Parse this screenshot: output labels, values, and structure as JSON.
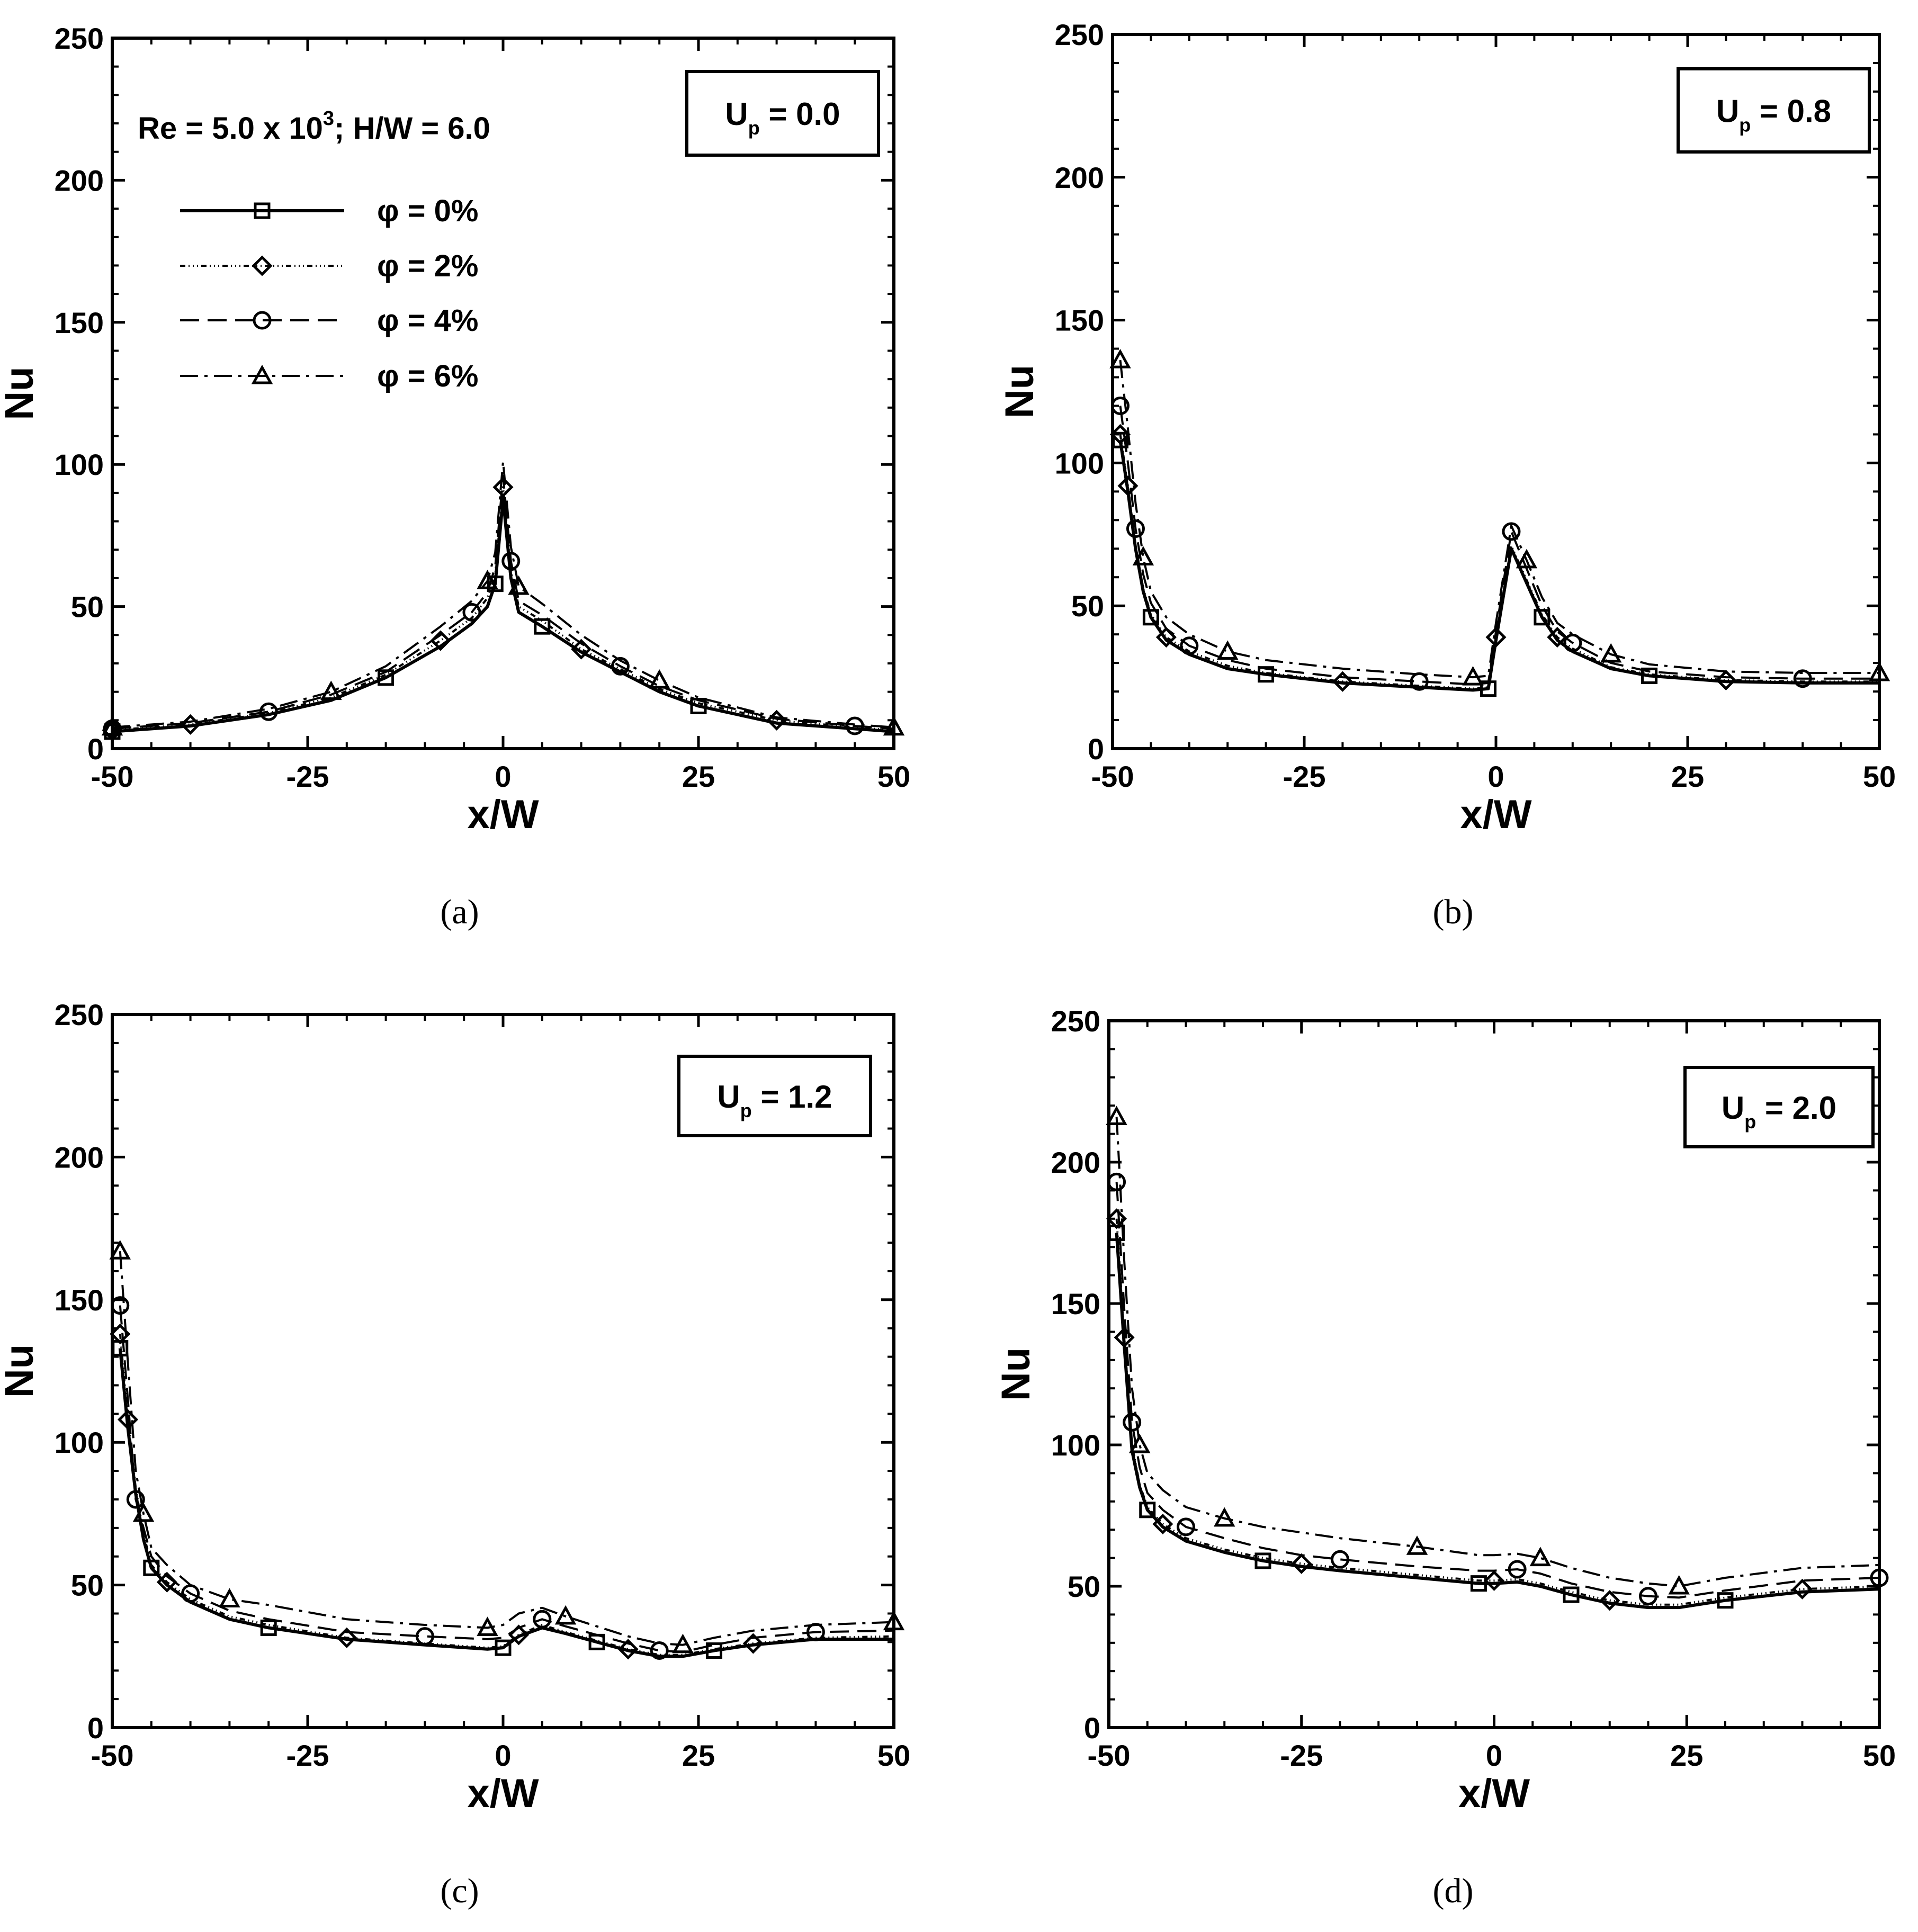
{
  "figure": {
    "annotation_main": "Re = 5.0 x 10",
    "annotation_sup": "3",
    "annotation_rest": "; H/W = 6.0",
    "legend_series_names": [
      "φ = 0%",
      "φ = 2%",
      "φ = 4%",
      "φ = 6%"
    ],
    "panel_captions": [
      "(a)",
      "(b)",
      "(c)",
      "(d)"
    ]
  },
  "chart_data": [
    {
      "type": "line",
      "panel": "(a)",
      "box_label": "U",
      "box_label_sub": "p",
      "box_label_value": " = 0.0",
      "xlabel": "x/W",
      "ylabel": "Nu",
      "xlim": [
        -50,
        50
      ],
      "ylim": [
        0,
        250
      ],
      "xticks": [
        "-50",
        "-25",
        "0",
        "25",
        "50"
      ],
      "yticks": [
        "0",
        "50",
        "100",
        "150",
        "200",
        "250"
      ],
      "x": [
        -50,
        -40,
        -30,
        -22,
        -15,
        -8,
        -4,
        -2,
        -1,
        0,
        1,
        2,
        5,
        10,
        15,
        20,
        25,
        35,
        45,
        50
      ],
      "series": [
        {
          "name": "φ = 0%",
          "marker": "square",
          "values": [
            6,
            8,
            12,
            17,
            25,
            36,
            44,
            50,
            58,
            88,
            60,
            48,
            43,
            34,
            27,
            20,
            15,
            9,
            7,
            6
          ]
        },
        {
          "name": "φ = 2%",
          "marker": "diamond",
          "values": [
            6.5,
            8.5,
            12.5,
            18,
            26,
            38,
            46,
            53,
            61,
            92,
            63,
            50,
            45,
            35,
            28,
            21,
            16,
            10,
            7.5,
            6.5
          ]
        },
        {
          "name": "φ = 4%",
          "marker": "circle",
          "values": [
            7,
            9,
            13,
            19,
            27,
            40,
            48,
            55,
            64,
            96,
            66,
            52,
            47,
            37,
            29,
            22,
            17,
            10.5,
            8,
            7
          ]
        },
        {
          "name": "φ = 6%",
          "marker": "triangle",
          "values": [
            7.5,
            9.5,
            14,
            20,
            29,
            43,
            52,
            59,
            69,
            101,
            71,
            57,
            51,
            40,
            31,
            24,
            18,
            11,
            8.5,
            7.5
          ]
        }
      ]
    },
    {
      "type": "line",
      "panel": "(b)",
      "box_label": "U",
      "box_label_sub": "p",
      "box_label_value": " = 0.8",
      "xlabel": "x/W",
      "ylabel": "Nu",
      "xlim": [
        -50,
        50
      ],
      "ylim": [
        0,
        250
      ],
      "xticks": [
        "-50",
        "-25",
        "0",
        "25",
        "50"
      ],
      "yticks": [
        "0",
        "50",
        "100",
        "150",
        "200",
        "250"
      ],
      "x": [
        -49,
        -48,
        -47,
        -46,
        -45,
        -43,
        -40,
        -35,
        -30,
        -20,
        -10,
        -3,
        -1,
        0,
        2,
        4,
        6,
        8,
        10,
        15,
        20,
        30,
        40,
        50
      ],
      "series": [
        {
          "name": "φ = 0%",
          "marker": "square",
          "values": [
            108,
            90,
            70,
            55,
            46,
            38,
            33,
            28,
            26,
            23,
            21.5,
            20.5,
            21,
            38,
            70,
            58,
            46,
            38,
            34,
            28,
            25.5,
            23.5,
            23,
            23
          ]
        },
        {
          "name": "φ = 2%",
          "marker": "diamond",
          "values": [
            110,
            92,
            71,
            56,
            47,
            39,
            34,
            29,
            26.5,
            23.5,
            22,
            21,
            21.5,
            39,
            71,
            59,
            47,
            39,
            35,
            28.5,
            26,
            24,
            23.5,
            23.5
          ]
        },
        {
          "name": "φ = 4%",
          "marker": "circle",
          "values": [
            120,
            100,
            77,
            61,
            51,
            42,
            36,
            31,
            28,
            25,
            23.5,
            22.5,
            23,
            41,
            76,
            63,
            50,
            41,
            37,
            30,
            27,
            25,
            24.5,
            24.5
          ]
        },
        {
          "name": "φ = 6%",
          "marker": "triangle",
          "values": [
            136,
            112,
            86,
            67,
            55,
            46,
            40,
            34,
            31,
            28,
            26,
            25,
            25.5,
            44,
            78,
            66,
            53,
            44,
            40,
            33,
            29.5,
            27,
            26.5,
            26.5
          ]
        }
      ]
    },
    {
      "type": "line",
      "panel": "(c)",
      "box_label": "U",
      "box_label_sub": "p",
      "box_label_value": " = 1.2",
      "xlabel": "x/W",
      "ylabel": "Nu",
      "xlim": [
        -50,
        50
      ],
      "ylim": [
        0,
        250
      ],
      "xticks": [
        "-50",
        "-25",
        "0",
        "25",
        "50"
      ],
      "yticks": [
        "0",
        "50",
        "100",
        "150",
        "200",
        "250"
      ],
      "x": [
        -49,
        -48,
        -47,
        -46,
        -45,
        -43,
        -40,
        -35,
        -30,
        -20,
        -10,
        -2,
        0,
        2,
        5,
        8,
        12,
        16,
        20,
        23,
        27,
        32,
        40,
        50
      ],
      "series": [
        {
          "name": "φ = 0%",
          "marker": "square",
          "values": [
            133,
            105,
            82,
            66,
            56,
            50,
            44,
            38,
            35,
            31,
            29,
            27.5,
            28,
            32,
            35,
            33,
            30,
            27,
            25,
            25,
            27,
            29,
            31,
            31
          ]
        },
        {
          "name": "φ = 2%",
          "marker": "diamond",
          "values": [
            138,
            108,
            84,
            68,
            57,
            51,
            45,
            39,
            36,
            31.5,
            29.5,
            28,
            28.5,
            32.5,
            36,
            33.5,
            30.5,
            27.5,
            25.5,
            25.5,
            27.5,
            29.5,
            31.5,
            32
          ]
        },
        {
          "name": "φ = 4%",
          "marker": "circle",
          "values": [
            148,
            115,
            80,
            70,
            60,
            53,
            47,
            41,
            38,
            33.5,
            32,
            31,
            31.5,
            35,
            38,
            35.5,
            32.5,
            29.5,
            27,
            26.5,
            29,
            31.5,
            33.5,
            34
          ]
        },
        {
          "name": "φ = 6%",
          "marker": "triangle",
          "values": [
            167,
            128,
            90,
            75,
            63,
            57,
            50,
            45,
            43,
            38,
            36,
            35,
            36,
            40,
            42,
            39,
            35.5,
            32,
            29.5,
            29,
            31.5,
            34,
            36,
            37
          ]
        }
      ]
    },
    {
      "type": "line",
      "panel": "(d)",
      "box_label": "U",
      "box_label_sub": "p",
      "box_label_value": " = 2.0",
      "xlabel": "x/W",
      "ylabel": "Nu",
      "xlim": [
        -50,
        50
      ],
      "ylim": [
        0,
        250
      ],
      "xticks": [
        "-50",
        "-25",
        "0",
        "25",
        "50"
      ],
      "yticks": [
        "0",
        "50",
        "100",
        "150",
        "200",
        "250"
      ],
      "x": [
        -49,
        -48,
        -47,
        -46,
        -45,
        -43,
        -40,
        -35,
        -30,
        -25,
        -20,
        -10,
        -2,
        0,
        3,
        6,
        10,
        15,
        20,
        24,
        30,
        40,
        50
      ],
      "series": [
        {
          "name": "φ = 0%",
          "marker": "square",
          "values": [
            175,
            135,
            98,
            85,
            77,
            71,
            66,
            62,
            59,
            57,
            55.5,
            53,
            51,
            51,
            51.5,
            50,
            47,
            44,
            42.5,
            42.5,
            45,
            48,
            49
          ]
        },
        {
          "name": "φ = 2%",
          "marker": "diamond",
          "values": [
            180,
            138,
            100,
            86,
            78,
            72,
            67,
            63,
            60,
            58,
            56.5,
            54,
            52,
            52,
            52.5,
            51,
            48,
            45,
            43.5,
            43.5,
            46,
            49,
            50
          ]
        },
        {
          "name": "φ = 4%",
          "marker": "circle",
          "values": [
            193,
            148,
            108,
            92,
            83,
            77,
            71,
            67,
            63.5,
            61,
            59.5,
            57,
            55.5,
            55.5,
            56,
            54.5,
            51,
            48,
            46.5,
            46,
            48.5,
            52,
            53
          ]
        },
        {
          "name": "φ = 6%",
          "marker": "triangle",
          "values": [
            216,
            165,
            120,
            100,
            90,
            84,
            78,
            74,
            71,
            69,
            67,
            64,
            61,
            61,
            61.5,
            60,
            56.5,
            53,
            51,
            50,
            53,
            56.5,
            57.5
          ]
        }
      ]
    }
  ]
}
